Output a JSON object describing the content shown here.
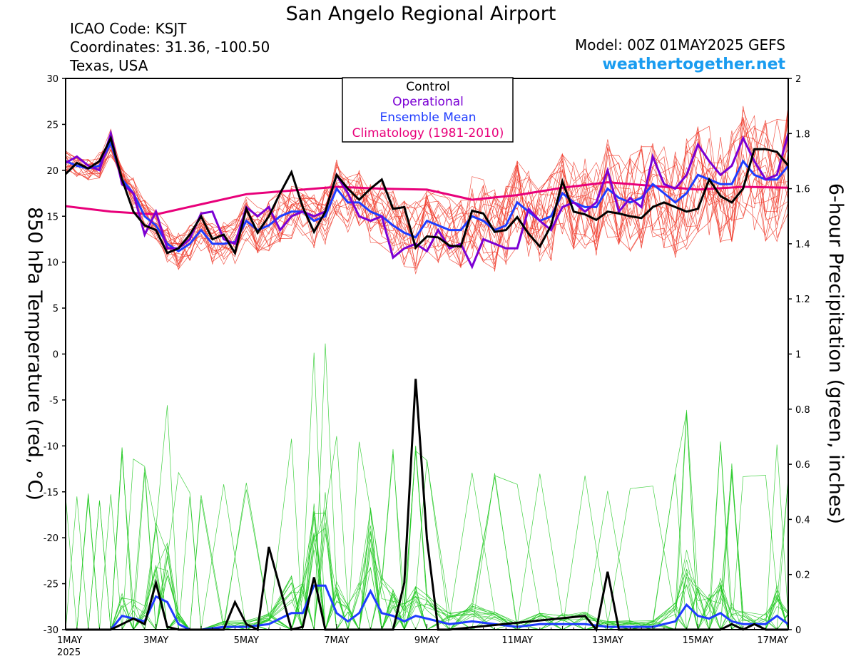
{
  "header": {
    "title": "San Angelo Regional Airport",
    "icao": "ICAO Code: KSJT",
    "coords": "Coordinates: 31.36, -100.50",
    "region": "Texas, USA",
    "model": "Model: 00Z 01MAY2025 GEFS",
    "site": "weathertogether.net"
  },
  "colors": {
    "control": "#000000",
    "operational": "#7b00d4",
    "ensemble_mean": "#1f3cff",
    "climatology": "#e8007a",
    "members_temp": "#f03a2a",
    "members_precip": "#22c922",
    "site": "#1a9cf0"
  },
  "chart_data": {
    "type": "line",
    "title": "San Angelo Regional Airport",
    "xlabel": "",
    "ylabel": "850 hPa Temperature (red, °C)",
    "ylabel_right": "6-hour Precipitation (green, inches)",
    "x_ticks": [
      "1MAY",
      "3MAY",
      "5MAY",
      "7MAY",
      "9MAY",
      "11MAY",
      "13MAY",
      "15MAY",
      "17MAY"
    ],
    "x_year": "2025",
    "x_range_days": [
      1,
      17
    ],
    "ylim": [
      -30,
      30
    ],
    "y_ticks": [
      "30",
      "25",
      "20",
      "15",
      "10",
      "5",
      "0",
      "-5",
      "-10",
      "-15",
      "-20",
      "-25",
      "-30"
    ],
    "ylim_right": [
      0,
      2
    ],
    "y_ticks_right": [
      "2",
      "1.8",
      "1.6",
      "1.4",
      "1.2",
      "1",
      "0.8",
      "0.6",
      "0.4",
      "0.2",
      "0"
    ],
    "legend": {
      "position": "top-center",
      "entries": [
        "Control",
        "Operational",
        "Ensemble Mean",
        "Climatology (1981-2010)"
      ]
    },
    "temperature": {
      "series": [
        {
          "name": "Control",
          "x": [
            1.0,
            1.25,
            1.5,
            1.75,
            2.0,
            2.25,
            2.5,
            2.75,
            3.0,
            3.25,
            3.5,
            3.75,
            4.0,
            4.25,
            4.5,
            4.75,
            5.0,
            5.25,
            5.5,
            5.75,
            6.0,
            6.25,
            6.5,
            6.75,
            7.0,
            7.25,
            7.5,
            7.75,
            8.0,
            8.25,
            8.5,
            8.75,
            9.0,
            9.25,
            9.5,
            9.75,
            10.0,
            10.25,
            10.5,
            10.75,
            11.0,
            11.25,
            11.5,
            11.75,
            12.0,
            12.25,
            12.5,
            12.75,
            13.0,
            13.25,
            13.5,
            13.75,
            14.0,
            14.25,
            14.5,
            14.75,
            15.0,
            15.25,
            15.5,
            15.75,
            16.0,
            16.25,
            16.5,
            16.75,
            17.0
          ],
          "values": [
            19.6,
            20.8,
            20.2,
            21.0,
            23.5,
            19.0,
            15.5,
            14.0,
            13.5,
            11.0,
            11.5,
            13.0,
            15.0,
            12.5,
            13.0,
            11.0,
            15.8,
            13.2,
            15.0,
            17.5,
            19.8,
            16.0,
            13.3,
            15.5,
            19.5,
            18.0,
            16.8,
            18.0,
            19.0,
            15.8,
            16.0,
            11.6,
            12.8,
            12.7,
            11.8,
            11.7,
            15.6,
            15.3,
            13.3,
            13.5,
            14.9,
            13.1,
            11.7,
            14.0,
            18.8,
            15.5,
            15.2,
            14.6,
            15.5,
            15.3,
            15.0,
            14.8,
            16.0,
            16.5,
            16.0,
            15.5,
            15.8,
            19.0,
            17.2,
            16.5,
            18.0,
            22.3,
            22.3,
            22.0,
            20.5
          ]
        },
        {
          "name": "Operational",
          "x": [
            1.0,
            1.25,
            1.5,
            1.75,
            2.0,
            2.25,
            2.5,
            2.75,
            3.0,
            3.25,
            3.5,
            3.75,
            4.0,
            4.25,
            4.5,
            4.75,
            5.0,
            5.25,
            5.5,
            5.75,
            6.0,
            6.25,
            6.5,
            6.75,
            7.0,
            7.25,
            7.5,
            7.75,
            8.0,
            8.25,
            8.5,
            8.75,
            9.0,
            9.25,
            9.5,
            9.75,
            10.0,
            10.25,
            10.5,
            10.75,
            11.0,
            11.25,
            11.5,
            11.75,
            12.0,
            12.25,
            12.5,
            12.75,
            13.0,
            13.25,
            13.5,
            13.75,
            14.0,
            14.25,
            14.5,
            14.75,
            15.0,
            15.25,
            15.5,
            15.75,
            16.0,
            16.25,
            16.5,
            16.75,
            17.0
          ],
          "values": [
            20.8,
            21.5,
            20.5,
            20.0,
            24.0,
            18.5,
            17.5,
            13.0,
            15.5,
            11.5,
            11.5,
            12.5,
            15.3,
            15.5,
            12.5,
            12.0,
            16.0,
            15.0,
            16.0,
            13.5,
            15.0,
            15.5,
            15.0,
            15.5,
            19.5,
            17.5,
            15.0,
            14.5,
            15.0,
            10.5,
            11.5,
            12.0,
            11.2,
            13.5,
            11.5,
            12.0,
            9.5,
            12.5,
            12.0,
            11.5,
            11.5,
            15.8,
            14.5,
            13.5,
            16.0,
            16.5,
            15.5,
            16.5,
            20.0,
            15.5,
            17.0,
            16.0,
            21.5,
            18.5,
            18.0,
            19.5,
            22.8,
            21.0,
            19.5,
            20.5,
            23.5,
            21.0,
            19.0,
            19.5,
            24.0
          ]
        },
        {
          "name": "Ensemble Mean",
          "x": [
            1.0,
            1.25,
            1.5,
            1.75,
            2.0,
            2.25,
            2.5,
            2.75,
            3.0,
            3.25,
            3.5,
            3.75,
            4.0,
            4.25,
            4.5,
            4.75,
            5.0,
            5.25,
            5.5,
            5.75,
            6.0,
            6.25,
            6.5,
            6.75,
            7.0,
            7.25,
            7.5,
            7.75,
            8.0,
            8.25,
            8.5,
            8.75,
            9.0,
            9.25,
            9.5,
            9.75,
            10.0,
            10.25,
            10.5,
            10.75,
            11.0,
            11.25,
            11.5,
            11.75,
            12.0,
            12.25,
            12.5,
            12.75,
            13.0,
            13.25,
            13.5,
            13.75,
            14.0,
            14.25,
            14.5,
            14.75,
            15.0,
            15.25,
            15.5,
            15.75,
            16.0,
            16.25,
            16.5,
            16.75,
            17.0
          ],
          "values": [
            21.0,
            20.5,
            20.2,
            20.5,
            23.0,
            19.0,
            17.5,
            15.0,
            14.0,
            12.0,
            11.2,
            12.0,
            13.5,
            12.0,
            12.0,
            12.2,
            14.5,
            13.5,
            14.0,
            15.0,
            15.5,
            15.5,
            14.5,
            15.0,
            18.0,
            16.5,
            16.5,
            15.5,
            15.0,
            14.0,
            13.2,
            12.7,
            14.5,
            14.0,
            13.5,
            13.5,
            15.0,
            14.5,
            13.5,
            14.0,
            16.5,
            15.5,
            14.5,
            15.0,
            17.5,
            16.5,
            16.0,
            16.0,
            18.0,
            17.0,
            16.5,
            17.0,
            18.5,
            17.5,
            16.5,
            17.5,
            19.5,
            19.0,
            18.5,
            18.5,
            21.0,
            19.5,
            19.0,
            19.0,
            20.5
          ]
        },
        {
          "name": "Climatology (1981-2010)",
          "x": [
            1,
            2,
            3,
            4,
            5,
            6,
            7,
            8,
            9,
            10,
            11,
            12,
            13,
            14,
            15,
            16,
            17
          ],
          "values": [
            16.1,
            15.5,
            15.2,
            16.3,
            17.4,
            17.8,
            18.2,
            18.0,
            17.9,
            16.8,
            17.3,
            18.1,
            18.7,
            18.3,
            17.9,
            18.2,
            18.1
          ]
        }
      ]
    },
    "precipitation": {
      "series": [
        {
          "name": "Control",
          "x": [
            1.0,
            1.5,
            1.75,
            2.0,
            2.25,
            2.5,
            2.75,
            3.0,
            3.25,
            3.5,
            4.5,
            4.75,
            5.0,
            5.25,
            5.5,
            5.75,
            6.0,
            6.25,
            6.5,
            6.75,
            7.0,
            7.25,
            8.0,
            8.25,
            8.5,
            8.75,
            9.0,
            9.25,
            9.5,
            12.5,
            12.75,
            13.0,
            13.25,
            13.5,
            15.5,
            15.75,
            16.0,
            16.25,
            16.5,
            17.0
          ],
          "values": [
            0,
            0,
            0,
            0,
            0.02,
            0.04,
            0.02,
            0.17,
            0.01,
            0,
            0,
            0.1,
            0.02,
            0,
            0.3,
            0.15,
            0,
            0.01,
            0.19,
            0,
            0,
            0,
            0,
            0,
            0.17,
            0.91,
            0.33,
            0,
            0,
            0.05,
            0,
            0.21,
            0,
            0,
            0,
            0.02,
            0,
            0.02,
            0,
            0
          ]
        },
        {
          "name": "Ensemble Mean",
          "x": [
            1.0,
            1.25,
            1.5,
            1.75,
            2.0,
            2.25,
            2.5,
            2.75,
            3.0,
            3.25,
            3.5,
            3.75,
            4.0,
            4.5,
            5.0,
            5.5,
            6.0,
            6.25,
            6.5,
            6.75,
            7.0,
            7.25,
            7.5,
            7.75,
            8.0,
            8.25,
            8.5,
            8.75,
            9.0,
            9.5,
            10.0,
            10.5,
            11.0,
            11.5,
            12.0,
            12.5,
            13.0,
            13.5,
            14.0,
            14.5,
            14.75,
            15.0,
            15.25,
            15.5,
            15.75,
            16.0,
            16.5,
            16.75,
            17.0
          ],
          "values": [
            0,
            0,
            0,
            0,
            0,
            0.05,
            0.04,
            0.03,
            0.12,
            0.1,
            0.02,
            0,
            0,
            0.01,
            0.01,
            0.02,
            0.06,
            0.06,
            0.16,
            0.16,
            0.06,
            0.03,
            0.06,
            0.14,
            0.06,
            0.05,
            0.03,
            0.05,
            0.04,
            0.02,
            0.03,
            0.02,
            0.01,
            0.02,
            0.02,
            0.02,
            0.01,
            0.01,
            0.01,
            0.03,
            0.09,
            0.05,
            0.04,
            0.06,
            0.03,
            0.02,
            0.02,
            0.05,
            0.02
          ]
        }
      ]
    }
  }
}
